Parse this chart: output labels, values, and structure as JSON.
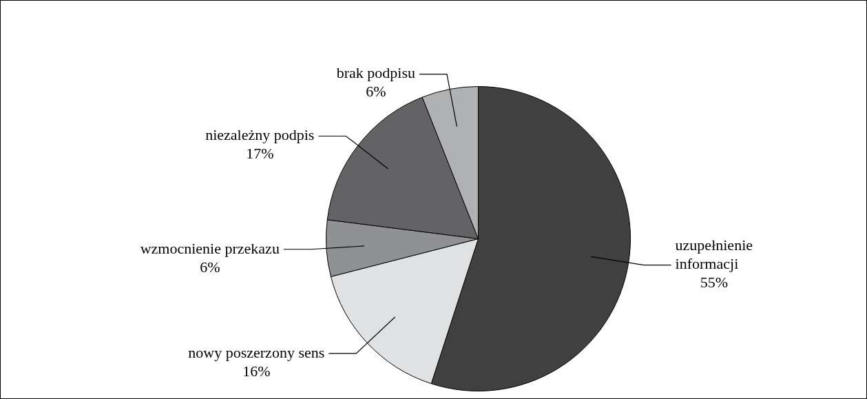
{
  "chart_data": {
    "type": "pie",
    "categories": [
      "uzupełnienie informacji",
      "nowy poszerzony sens",
      "wzmocnienie przekazu",
      "niezależny podpis",
      "brak podpisu"
    ],
    "values": [
      55,
      16,
      6,
      17,
      6
    ],
    "value_labels": [
      "55%",
      "16%",
      "6%",
      "17%",
      "6%"
    ],
    "colors": [
      "#404040",
      "#e0e1e3",
      "#909193",
      "#636365",
      "#b0b1b3"
    ]
  }
}
